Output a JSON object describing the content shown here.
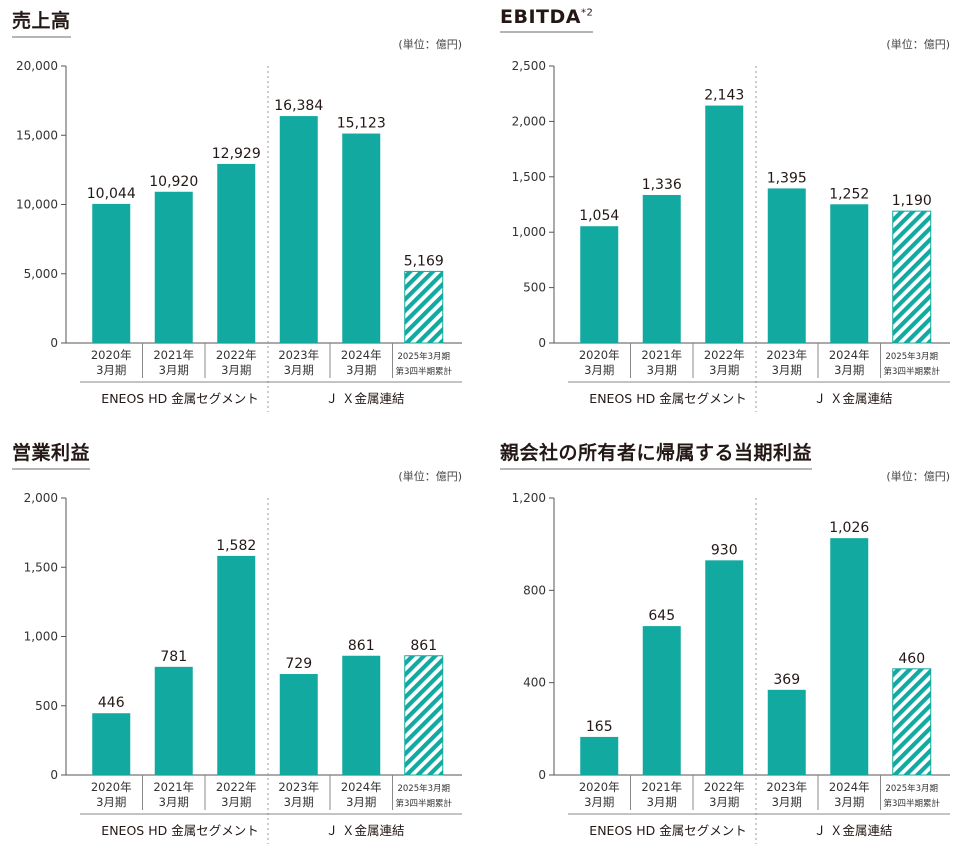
{
  "unit_label": "(単位：億円)",
  "segments": [
    "ENEOS HD 金属セグメント",
    "Ｊ Ｘ金属連結"
  ],
  "colors": {
    "bar": "#12a9a1",
    "hatch_light": "#ffffff",
    "grid": "#9a9a9a"
  },
  "chart_data": [
    {
      "type": "bar",
      "title": "売上高",
      "title_sup": "",
      "categories": [
        [
          "2020年",
          "3月期"
        ],
        [
          "2021年",
          "3月期"
        ],
        [
          "2022年",
          "3月期"
        ],
        [
          "2023年",
          "3月期"
        ],
        [
          "2024年",
          "3月期"
        ],
        [
          "2025年3月期",
          "第3四半期累計"
        ]
      ],
      "values": [
        10044,
        10920,
        12929,
        16384,
        15123,
        5169
      ],
      "value_labels": [
        "10,044",
        "10,920",
        "12,929",
        "16,384",
        "15,123",
        "5,169"
      ],
      "hatched": [
        false,
        false,
        false,
        false,
        false,
        true
      ],
      "ylim": [
        0,
        20000
      ],
      "yticks": [
        0,
        5000,
        10000,
        15000,
        20000
      ],
      "ytick_labels": [
        "0",
        "5,000",
        "10,000",
        "15,000",
        "20,000"
      ]
    },
    {
      "type": "bar",
      "title": "EBITDA",
      "title_sup": "*2",
      "categories": [
        [
          "2020年",
          "3月期"
        ],
        [
          "2021年",
          "3月期"
        ],
        [
          "2022年",
          "3月期"
        ],
        [
          "2023年",
          "3月期"
        ],
        [
          "2024年",
          "3月期"
        ],
        [
          "2025年3月期",
          "第3四半期累計"
        ]
      ],
      "values": [
        1054,
        1336,
        2143,
        1395,
        1252,
        1190
      ],
      "value_labels": [
        "1,054",
        "1,336",
        "2,143",
        "1,395",
        "1,252",
        "1,190"
      ],
      "hatched": [
        false,
        false,
        false,
        false,
        false,
        true
      ],
      "ylim": [
        0,
        2500
      ],
      "yticks": [
        0,
        500,
        1000,
        1500,
        2000,
        2500
      ],
      "ytick_labels": [
        "0",
        "500",
        "1,000",
        "1,500",
        "2,000",
        "2,500"
      ]
    },
    {
      "type": "bar",
      "title": "営業利益",
      "title_sup": "",
      "categories": [
        [
          "2020年",
          "3月期"
        ],
        [
          "2021年",
          "3月期"
        ],
        [
          "2022年",
          "3月期"
        ],
        [
          "2023年",
          "3月期"
        ],
        [
          "2024年",
          "3月期"
        ],
        [
          "2025年3月期",
          "第3四半期累計"
        ]
      ],
      "values": [
        446,
        781,
        1582,
        729,
        861,
        861
      ],
      "value_labels": [
        "446",
        "781",
        "1,582",
        "729",
        "861",
        "861"
      ],
      "hatched": [
        false,
        false,
        false,
        false,
        false,
        true
      ],
      "ylim": [
        0,
        2000
      ],
      "yticks": [
        0,
        500,
        1000,
        1500,
        2000
      ],
      "ytick_labels": [
        "0",
        "500",
        "1,000",
        "1,500",
        "2,000"
      ]
    },
    {
      "type": "bar",
      "title": "親会社の所有者に帰属する当期利益",
      "title_sup": "",
      "categories": [
        [
          "2020年",
          "3月期"
        ],
        [
          "2021年",
          "3月期"
        ],
        [
          "2022年",
          "3月期"
        ],
        [
          "2023年",
          "3月期"
        ],
        [
          "2024年",
          "3月期"
        ],
        [
          "2025年3月期",
          "第3四半期累計"
        ]
      ],
      "values": [
        165,
        645,
        930,
        369,
        1026,
        460
      ],
      "value_labels": [
        "165",
        "645",
        "930",
        "369",
        "1,026",
        "460"
      ],
      "hatched": [
        false,
        false,
        false,
        false,
        false,
        true
      ],
      "ylim": [
        0,
        1200
      ],
      "yticks": [
        0,
        400,
        800,
        1200
      ],
      "ytick_labels": [
        "0",
        "400",
        "800",
        "1,200"
      ]
    }
  ]
}
